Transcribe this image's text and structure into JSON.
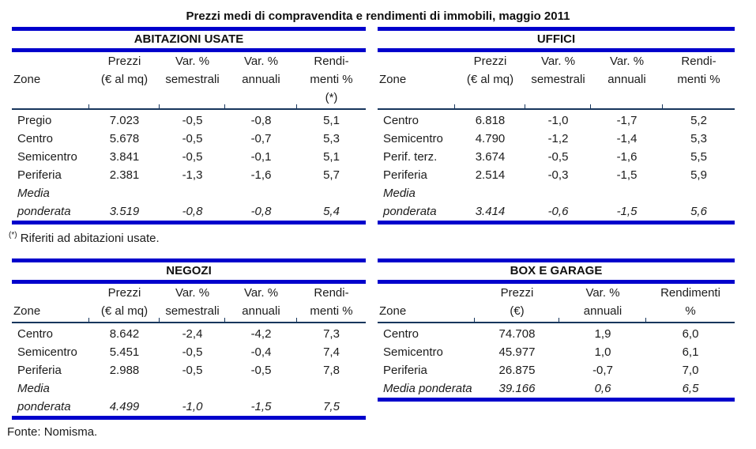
{
  "page": {
    "title": "Prezzi medi di compravendita e rendimenti di immobili, maggio 2011",
    "footnote_marker": "(*)",
    "footnote_text": " Riferiti ad abitazioni usate.",
    "source": "Fonte: Nomisma."
  },
  "colors": {
    "rule_blue": "#0000cc",
    "header_rule_navy": "#17365d",
    "text": "#1c1c1c",
    "background": "#ffffff"
  },
  "tables": [
    {
      "title": "ABITAZIONI USATE",
      "columns": [
        {
          "lines": [
            "",
            "Zone",
            ""
          ],
          "align": "left"
        },
        {
          "lines": [
            "Prezzi",
            "(€ al mq)",
            ""
          ],
          "align": "center"
        },
        {
          "lines": [
            "Var. %",
            "semestrali",
            ""
          ],
          "align": "center"
        },
        {
          "lines": [
            "Var. %",
            "annuali",
            ""
          ],
          "align": "center"
        },
        {
          "lines": [
            "Rendi-",
            "menti %",
            "(*)"
          ],
          "align": "center"
        }
      ],
      "rows": [
        {
          "zone": "Pregio",
          "values": [
            "7.023",
            "-0,5",
            "-0,8",
            "5,1"
          ],
          "italic": false
        },
        {
          "zone": "Centro",
          "values": [
            "5.678",
            "-0,5",
            "-0,7",
            "5,3"
          ],
          "italic": false
        },
        {
          "zone": "Semicentro",
          "values": [
            "3.841",
            "-0,5",
            "-0,1",
            "5,1"
          ],
          "italic": false
        },
        {
          "zone": "Periferia",
          "values": [
            "2.381",
            "-1,3",
            "-1,6",
            "5,7"
          ],
          "italic": false
        },
        {
          "zone": "Media ponderata",
          "values": [
            "3.519",
            "-0,8",
            "-0,8",
            "5,4"
          ],
          "italic": true
        }
      ]
    },
    {
      "title": "UFFICI",
      "columns": [
        {
          "lines": [
            "",
            "Zone",
            ""
          ],
          "align": "left"
        },
        {
          "lines": [
            "Prezzi",
            "(€ al mq)",
            ""
          ],
          "align": "center"
        },
        {
          "lines": [
            "Var. %",
            "semestrali",
            ""
          ],
          "align": "center"
        },
        {
          "lines": [
            "Var. %",
            "annuali",
            ""
          ],
          "align": "center"
        },
        {
          "lines": [
            "Rendi-",
            "menti %",
            ""
          ],
          "align": "center"
        }
      ],
      "rows": [
        {
          "zone": "Centro",
          "values": [
            "6.818",
            "-1,0",
            "-1,7",
            "5,2"
          ],
          "italic": false
        },
        {
          "zone": "Semicentro",
          "values": [
            "4.790",
            "-1,2",
            "-1,4",
            "5,3"
          ],
          "italic": false
        },
        {
          "zone": "Perif. terz.",
          "values": [
            "3.674",
            "-0,5",
            "-1,6",
            "5,5"
          ],
          "italic": false
        },
        {
          "zone": "Periferia",
          "values": [
            "2.514",
            "-0,3",
            "-1,5",
            "5,9"
          ],
          "italic": false
        },
        {
          "zone": "Media ponderata",
          "values": [
            "3.414",
            "-0,6",
            "-1,5",
            "5,6"
          ],
          "italic": true
        }
      ]
    },
    {
      "title": "NEGOZI",
      "columns": [
        {
          "lines": [
            "",
            "Zone"
          ],
          "align": "left"
        },
        {
          "lines": [
            "Prezzi",
            "(€ al mq)"
          ],
          "align": "center"
        },
        {
          "lines": [
            "Var. %",
            "semestrali"
          ],
          "align": "center"
        },
        {
          "lines": [
            "Var. %",
            "annuali"
          ],
          "align": "center"
        },
        {
          "lines": [
            "Rendi-",
            "menti %"
          ],
          "align": "center"
        }
      ],
      "rows": [
        {
          "zone": "Centro",
          "values": [
            "8.642",
            "-2,4",
            "-4,2",
            "7,3"
          ],
          "italic": false
        },
        {
          "zone": "Semicentro",
          "values": [
            "5.451",
            "-0,5",
            "-0,4",
            "7,4"
          ],
          "italic": false
        },
        {
          "zone": "Periferia",
          "values": [
            "2.988",
            "-0,5",
            "-0,5",
            "7,8"
          ],
          "italic": false
        },
        {
          "zone": "Media ponderata",
          "values": [
            "4.499",
            "-1,0",
            "-1,5",
            "7,5"
          ],
          "italic": true
        }
      ]
    },
    {
      "title": "BOX E GARAGE",
      "columns": [
        {
          "lines": [
            "",
            "Zone"
          ],
          "align": "left"
        },
        {
          "lines": [
            "Prezzi",
            "(€)"
          ],
          "align": "center"
        },
        {
          "lines": [
            "Var. %",
            "annuali"
          ],
          "align": "center"
        },
        {
          "lines": [
            "Rendimenti",
            "%"
          ],
          "align": "center"
        }
      ],
      "rows": [
        {
          "zone": "Centro",
          "values": [
            "74.708",
            "1,9",
            "6,0"
          ],
          "italic": false
        },
        {
          "zone": "Semicentro",
          "values": [
            "45.977",
            "1,0",
            "6,1"
          ],
          "italic": false
        },
        {
          "zone": "Periferia",
          "values": [
            "26.875",
            "-0,7",
            "7,0"
          ],
          "italic": false
        },
        {
          "zone": "Media ponderata",
          "values": [
            "39.166",
            "0,6",
            "6,5"
          ],
          "italic": true
        }
      ]
    }
  ]
}
